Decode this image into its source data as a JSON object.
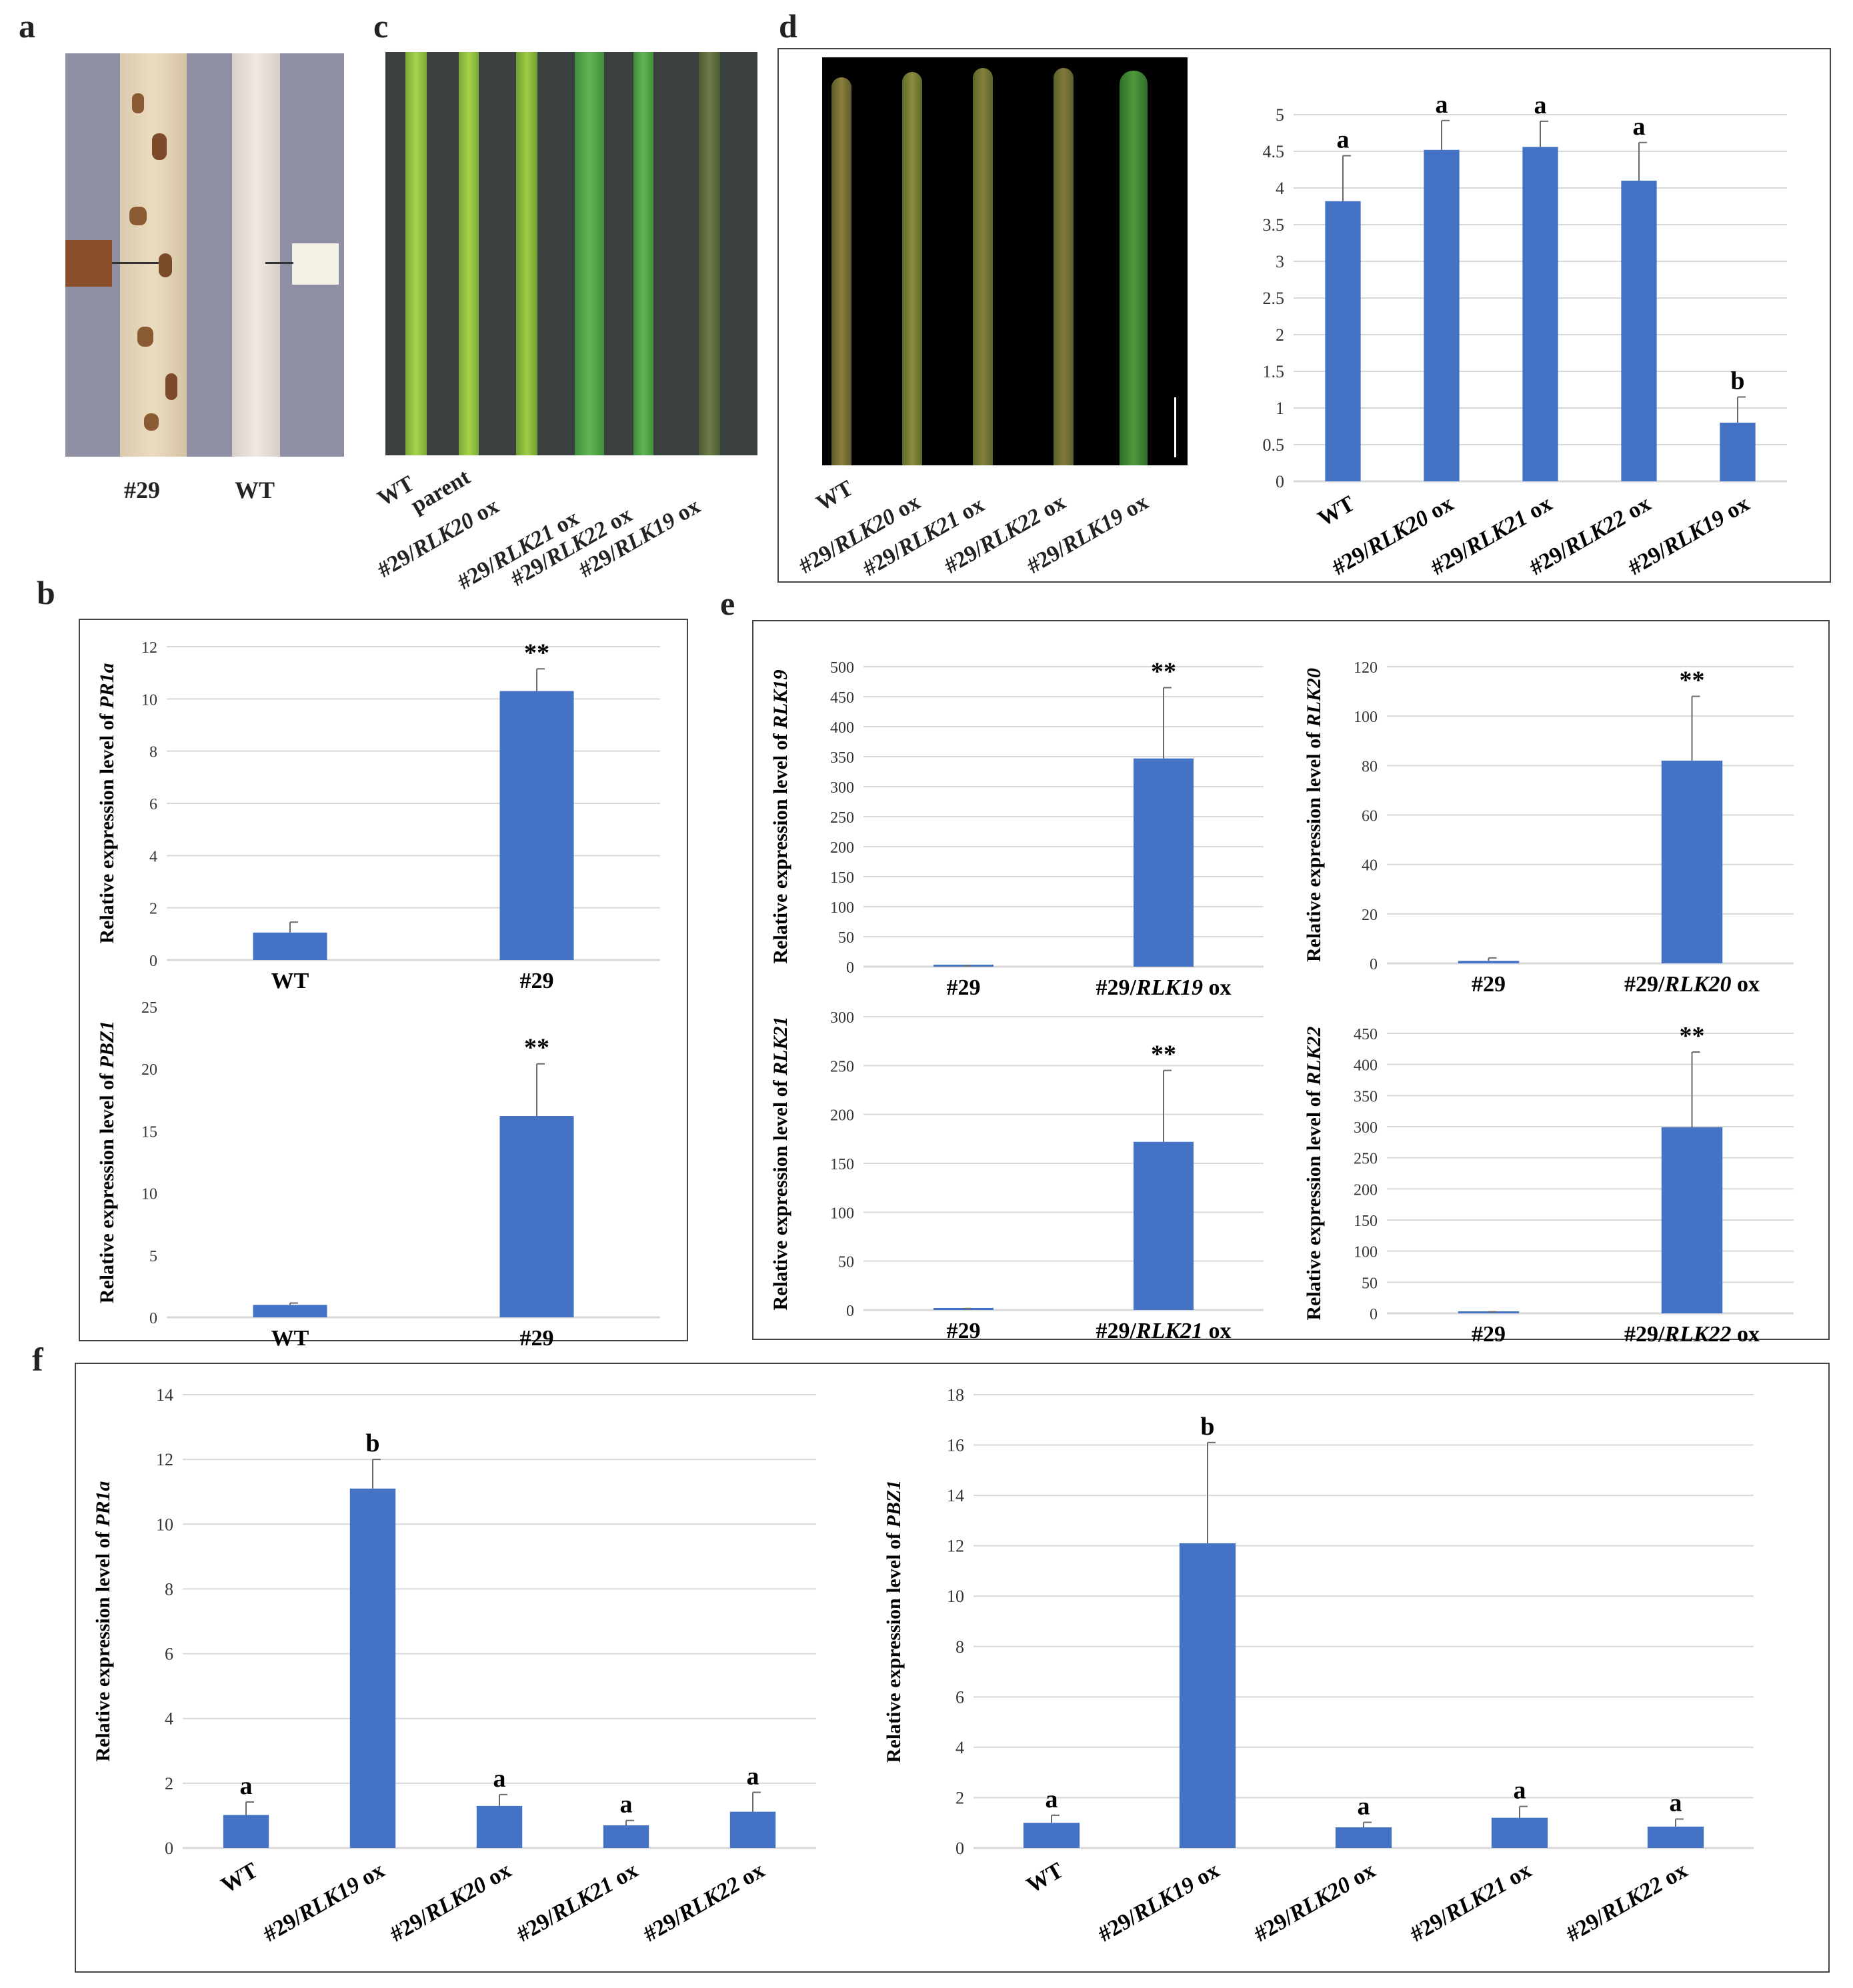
{
  "panel_letters": {
    "a": "a",
    "b": "b",
    "c": "c",
    "d": "d",
    "e": "e",
    "f": "f"
  },
  "panel_a": {
    "labels": [
      "#29",
      "WT"
    ]
  },
  "panel_c": {
    "labels": [
      "WT",
      "parent",
      "#29/RLK20 ox",
      "#29/RLK21 ox",
      "#29/RLK22 ox",
      "#29/RLK19 ox"
    ]
  },
  "panel_d_photo": {
    "labels": [
      "WT",
      "#29/RLK20 ox",
      "#29/RLK21 ox",
      "#29/RLK22 ox",
      "#29/RLK19 ox"
    ]
  },
  "colors": {
    "bar": "#4472C4",
    "grid": "#d9d9d9",
    "axis": "#555555"
  },
  "chart_data": [
    {
      "id": "d",
      "type": "bar",
      "categories": [
        "WT",
        "#29/RLK20 ox",
        "#29/RLK21 ox",
        "#29/RLK22 ox",
        "#29/RLK19 ox"
      ],
      "values": [
        3.82,
        4.52,
        4.56,
        4.1,
        0.8
      ],
      "errors": [
        0.62,
        0.4,
        0.35,
        0.52,
        0.35
      ],
      "annotations": [
        "a",
        "a",
        "a",
        "a",
        "b"
      ],
      "ylim": [
        0,
        5
      ],
      "yticks": [
        "0",
        "0.5",
        "1",
        "1.5",
        "2",
        "2.5",
        "3",
        "3.5",
        "4",
        "4.5",
        "5"
      ],
      "ylabel": "",
      "grid": true
    },
    {
      "id": "b1",
      "type": "bar",
      "categories": [
        "WT",
        "#29"
      ],
      "values": [
        1.05,
        10.3
      ],
      "errors": [
        0.4,
        0.85
      ],
      "annotations": [
        "",
        "**"
      ],
      "ylim": [
        0,
        12
      ],
      "yticks": [
        "0",
        "2",
        "4",
        "6",
        "8",
        "10",
        "12"
      ],
      "ylabel": "Relative expression level of ",
      "ylabel_gene": "PR1a",
      "grid": true
    },
    {
      "id": "b2",
      "type": "bar",
      "categories": [
        "WT",
        "#29"
      ],
      "values": [
        1.0,
        16.2
      ],
      "errors": [
        0.15,
        4.2
      ],
      "annotations": [
        "",
        "**"
      ],
      "ylim": [
        0,
        25
      ],
      "yticks": [
        "0",
        "5",
        "10",
        "15",
        "20",
        "25"
      ],
      "ylabel": "Relative expression level of ",
      "ylabel_gene": "PBZ1",
      "grid": false
    },
    {
      "id": "e1",
      "type": "bar",
      "categories": [
        "#29",
        "#29/RLK19 ox"
      ],
      "values": [
        1,
        347
      ],
      "errors": [
        0.5,
        118
      ],
      "annotations": [
        "",
        "**"
      ],
      "ylim": [
        0,
        500
      ],
      "yticks": [
        "0",
        "50",
        "100",
        "150",
        "200",
        "250",
        "300",
        "350",
        "400",
        "450",
        "500"
      ],
      "ylabel": "Relative expression level of ",
      "ylabel_gene": "RLK19",
      "grid": true
    },
    {
      "id": "e2",
      "type": "bar",
      "categories": [
        "#29",
        "#29/RLK20 ox"
      ],
      "values": [
        1,
        82
      ],
      "errors": [
        1.2,
        26
      ],
      "annotations": [
        "",
        "**"
      ],
      "ylim": [
        0,
        120
      ],
      "yticks": [
        "0",
        "20",
        "40",
        "60",
        "80",
        "100",
        "120"
      ],
      "ylabel": "Relative expression level of ",
      "ylabel_gene": "RLK20",
      "grid": true
    },
    {
      "id": "e3",
      "type": "bar",
      "categories": [
        "#29",
        "#29/RLK21 ox"
      ],
      "values": [
        1,
        172
      ],
      "errors": [
        0.5,
        73
      ],
      "annotations": [
        "",
        "**"
      ],
      "ylim": [
        0,
        300
      ],
      "yticks": [
        "0",
        "50",
        "100",
        "150",
        "200",
        "250",
        "300"
      ],
      "ylabel": "Relative expression level of ",
      "ylabel_gene": "RLK21",
      "grid": true
    },
    {
      "id": "e4",
      "type": "bar",
      "categories": [
        "#29",
        "#29/RLK22 ox"
      ],
      "values": [
        1,
        299
      ],
      "errors": [
        1.5,
        121
      ],
      "annotations": [
        "",
        "**"
      ],
      "ylim": [
        0,
        450
      ],
      "yticks": [
        "0",
        "50",
        "100",
        "150",
        "200",
        "250",
        "300",
        "350",
        "400",
        "450"
      ],
      "ylabel": "Relative expression level of ",
      "ylabel_gene": "RLK22",
      "grid": true
    },
    {
      "id": "f1",
      "type": "bar",
      "categories": [
        "WT",
        "#29/RLK19 ox",
        "#29/RLK20 ox",
        "#29/RLK21 ox",
        "#29/RLK22 ox"
      ],
      "values": [
        1.02,
        11.1,
        1.3,
        0.7,
        1.12
      ],
      "errors": [
        0.4,
        0.9,
        0.35,
        0.15,
        0.6
      ],
      "annotations": [
        "a",
        "b",
        "a",
        "a",
        "a"
      ],
      "ylim": [
        0,
        14
      ],
      "yticks": [
        "0",
        "2",
        "4",
        "6",
        "8",
        "10",
        "12",
        "14"
      ],
      "ylabel": "Relative expression level of ",
      "ylabel_gene": "PR1a",
      "grid": true
    },
    {
      "id": "f2",
      "type": "bar",
      "categories": [
        "WT",
        "#29/RLK19 ox",
        "#29/RLK20 ox",
        "#29/RLK21 ox",
        "#29/RLK22 ox"
      ],
      "values": [
        1.0,
        12.1,
        0.82,
        1.2,
        0.85
      ],
      "errors": [
        0.3,
        4.0,
        0.2,
        0.45,
        0.3
      ],
      "annotations": [
        "a",
        "b",
        "a",
        "a",
        "a"
      ],
      "ylim": [
        0,
        18
      ],
      "yticks": [
        "0",
        "2",
        "4",
        "6",
        "8",
        "10",
        "12",
        "14",
        "16",
        "18"
      ],
      "ylabel": "Relative expression level of ",
      "ylabel_gene": "PBZ1",
      "grid": true
    }
  ]
}
